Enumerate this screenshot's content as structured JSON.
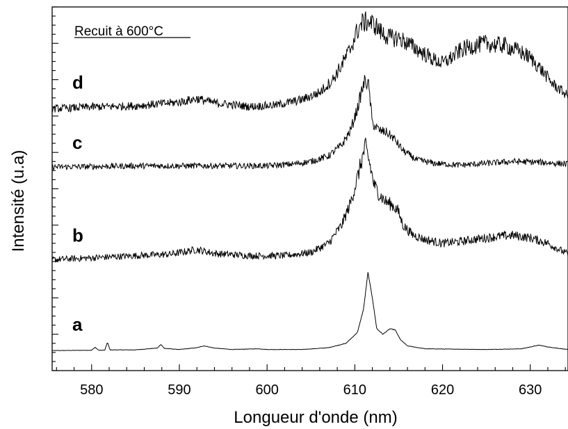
{
  "chart_data": {
    "type": "line",
    "title": "",
    "annotation": "Recuit à 600°C",
    "xlabel": "Longueur d'onde (nm)",
    "ylabel": "Intensité (u.a)",
    "xlim": [
      575.5,
      634.3
    ],
    "xticks": [
      580,
      590,
      600,
      610,
      620,
      630
    ],
    "xtick_labels": [
      "580",
      "590",
      "600",
      "610",
      "620",
      "630"
    ],
    "ylim": [
      0,
      100
    ],
    "grid": false,
    "legend": "none",
    "line_color": "#000000",
    "noise_levels": {
      "a": 0.05,
      "b": 0.9,
      "c": 0.8,
      "d": 1.1
    },
    "series": [
      {
        "name": "a",
        "baseline_y": 5.5,
        "points": [
          [
            575.5,
            5.5
          ],
          [
            580.0,
            5.6
          ],
          [
            580.4,
            6.4
          ],
          [
            580.8,
            5.6
          ],
          [
            581.5,
            5.6
          ],
          [
            581.8,
            7.8
          ],
          [
            582.1,
            5.7
          ],
          [
            585.0,
            5.7
          ],
          [
            587.5,
            6.2
          ],
          [
            587.9,
            7.2
          ],
          [
            588.3,
            6.1
          ],
          [
            590.0,
            5.8
          ],
          [
            592.0,
            6.3
          ],
          [
            592.8,
            6.8
          ],
          [
            594.0,
            6.2
          ],
          [
            596.0,
            5.8
          ],
          [
            599.0,
            6.0
          ],
          [
            600.0,
            5.8
          ],
          [
            604.0,
            5.8
          ],
          [
            607.0,
            6.3
          ],
          [
            609.0,
            7.5
          ],
          [
            610.3,
            10.5
          ],
          [
            611.0,
            17.0
          ],
          [
            611.5,
            27.0
          ],
          [
            612.0,
            20.0
          ],
          [
            612.5,
            11.5
          ],
          [
            613.2,
            10.0
          ],
          [
            614.0,
            11.5
          ],
          [
            614.6,
            11.2
          ],
          [
            615.2,
            8.5
          ],
          [
            616.0,
            6.8
          ],
          [
            618.0,
            6.0
          ],
          [
            625.0,
            5.8
          ],
          [
            629.0,
            6.0
          ],
          [
            631.0,
            7.0
          ],
          [
            632.0,
            6.5
          ],
          [
            634.3,
            5.8
          ]
        ]
      },
      {
        "name": "b",
        "baseline_y": 31.0,
        "points": [
          [
            575.5,
            30.5
          ],
          [
            580.0,
            31.0
          ],
          [
            585.0,
            31.6
          ],
          [
            589.0,
            32.0
          ],
          [
            592.0,
            33.3
          ],
          [
            594.0,
            32.2
          ],
          [
            598.0,
            31.6
          ],
          [
            602.0,
            31.6
          ],
          [
            605.0,
            32.5
          ],
          [
            607.0,
            35.0
          ],
          [
            608.5,
            40.0
          ],
          [
            609.5,
            46.0
          ],
          [
            610.3,
            53.0
          ],
          [
            610.8,
            58.0
          ],
          [
            611.2,
            61.5
          ],
          [
            611.6,
            58.0
          ],
          [
            612.2,
            51.0
          ],
          [
            612.8,
            48.5
          ],
          [
            613.5,
            46.5
          ],
          [
            614.3,
            45.5
          ],
          [
            614.9,
            44.0
          ],
          [
            615.5,
            40.0
          ],
          [
            616.5,
            37.5
          ],
          [
            618.0,
            36.0
          ],
          [
            620.0,
            35.0
          ],
          [
            622.0,
            35.5
          ],
          [
            624.0,
            36.2
          ],
          [
            626.0,
            36.8
          ],
          [
            628.0,
            37.2
          ],
          [
            630.0,
            36.5
          ],
          [
            632.0,
            35.0
          ],
          [
            634.3,
            32.0
          ]
        ]
      },
      {
        "name": "c",
        "baseline_y": 56.0,
        "points": [
          [
            575.5,
            56.0
          ],
          [
            580.0,
            56.1
          ],
          [
            585.0,
            56.3
          ],
          [
            590.0,
            56.3
          ],
          [
            595.0,
            56.3
          ],
          [
            600.0,
            56.3
          ],
          [
            603.0,
            56.8
          ],
          [
            605.0,
            57.5
          ],
          [
            607.0,
            59.0
          ],
          [
            608.5,
            62.0
          ],
          [
            609.5,
            66.0
          ],
          [
            610.3,
            72.0
          ],
          [
            610.8,
            77.0
          ],
          [
            611.2,
            80.0
          ],
          [
            611.6,
            78.0
          ],
          [
            612.0,
            68.0
          ],
          [
            612.8,
            66.0
          ],
          [
            613.6,
            65.5
          ],
          [
            614.4,
            64.0
          ],
          [
            615.5,
            60.5
          ],
          [
            617.0,
            58.0
          ],
          [
            619.0,
            57.0
          ],
          [
            622.0,
            56.5
          ],
          [
            625.0,
            57.0
          ],
          [
            628.0,
            57.5
          ],
          [
            631.0,
            57.3
          ],
          [
            634.3,
            56.8
          ]
        ]
      },
      {
        "name": "d",
        "baseline_y": 72.5,
        "points": [
          [
            575.5,
            72.0
          ],
          [
            580.0,
            72.5
          ],
          [
            585.0,
            72.8
          ],
          [
            590.0,
            73.8
          ],
          [
            592.0,
            74.8
          ],
          [
            594.0,
            73.6
          ],
          [
            598.0,
            72.6
          ],
          [
            601.0,
            73.0
          ],
          [
            604.0,
            74.5
          ],
          [
            606.0,
            76.5
          ],
          [
            607.5,
            80.0
          ],
          [
            608.5,
            84.0
          ],
          [
            609.5,
            88.5
          ],
          [
            610.2,
            93.0
          ],
          [
            610.8,
            95.5
          ],
          [
            611.5,
            96.0
          ],
          [
            612.3,
            95.0
          ],
          [
            613.0,
            93.0
          ],
          [
            614.0,
            91.5
          ],
          [
            615.0,
            91.5
          ],
          [
            616.0,
            90.0
          ],
          [
            617.0,
            88.5
          ],
          [
            618.0,
            87.0
          ],
          [
            619.0,
            85.5
          ],
          [
            620.0,
            84.5
          ],
          [
            621.0,
            86.0
          ],
          [
            622.0,
            88.0
          ],
          [
            623.0,
            89.0
          ],
          [
            624.0,
            89.5
          ],
          [
            625.0,
            90.0
          ],
          [
            626.0,
            89.5
          ],
          [
            627.0,
            89.5
          ],
          [
            628.0,
            88.5
          ],
          [
            629.0,
            87.5
          ],
          [
            630.0,
            86.0
          ],
          [
            631.0,
            83.5
          ],
          [
            632.5,
            79.0
          ],
          [
            634.3,
            75.5
          ]
        ]
      }
    ],
    "curve_labels": [
      {
        "text": "a",
        "x": 577.8,
        "y": 11.0
      },
      {
        "text": "b",
        "x": 577.8,
        "y": 35.5
      },
      {
        "text": "c",
        "x": 577.8,
        "y": 61.0
      },
      {
        "text": "d",
        "x": 577.8,
        "y": 77.5
      }
    ]
  }
}
